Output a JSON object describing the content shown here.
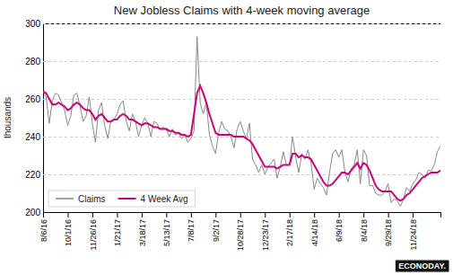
{
  "chart_data": {
    "type": "line",
    "title": "New Jobless  Claims with 4-week moving average",
    "y_label": "thousands",
    "annotations": [
      "ECONODAY."
    ],
    "categories": [
      "8/6/16",
      null,
      null,
      null,
      null,
      null,
      null,
      null,
      "10/1/16",
      null,
      null,
      null,
      null,
      null,
      null,
      null,
      "11/26/16",
      null,
      null,
      null,
      null,
      null,
      null,
      null,
      "1/21/17",
      null,
      null,
      null,
      null,
      null,
      null,
      null,
      "3/18/17",
      null,
      null,
      null,
      null,
      null,
      null,
      null,
      "5/13/17",
      null,
      null,
      null,
      null,
      null,
      null,
      null,
      "7/8/17",
      null,
      null,
      null,
      null,
      null,
      null,
      null,
      "9/2/17",
      null,
      null,
      null,
      null,
      null,
      null,
      null,
      "10/28/17",
      null,
      null,
      null,
      null,
      null,
      null,
      null,
      "12/23/17",
      null,
      null,
      null,
      null,
      null,
      null,
      null,
      "2/17/18",
      null,
      null,
      null,
      null,
      null,
      null,
      null,
      "4/14/18",
      null,
      null,
      null,
      null,
      null,
      null,
      null,
      "6/9/18",
      null,
      null,
      null,
      null,
      null,
      null,
      null,
      "8/4/18",
      null,
      null,
      null,
      null,
      null,
      null,
      null,
      "9/29/18",
      null,
      null,
      null,
      null,
      null,
      null,
      null,
      "11/24/18",
      null,
      null,
      null,
      null,
      null,
      null,
      null,
      null,
      null
    ],
    "series": [
      {
        "name": "Claims",
        "color": "#888888",
        "values": [
          264,
          261,
          247,
          259,
          263,
          262,
          258,
          254,
          246,
          251,
          262,
          263,
          256,
          248,
          251,
          261,
          247,
          237,
          254,
          258,
          246,
          239,
          248,
          249,
          252,
          257,
          259,
          248,
          243,
          252,
          248,
          240,
          246,
          250,
          247,
          240,
          248,
          247,
          244,
          245,
          244,
          240,
          244,
          241,
          242,
          239,
          241,
          237,
          239,
          243,
          293,
          258,
          252,
          258,
          241,
          235,
          231,
          242,
          248,
          244,
          243,
          240,
          234,
          244,
          248,
          243,
          239,
          247,
          228,
          225,
          221,
          225,
          220,
          224,
          226,
          228,
          218,
          224,
          232,
          225,
          225,
          240,
          229,
          221,
          231,
          228,
          233,
          226,
          212,
          218,
          215,
          213,
          209,
          221,
          231,
          233,
          229,
          233,
          221,
          216,
          223,
          225,
          233,
          215,
          233,
          230,
          214,
          214,
          210,
          209,
          209,
          211,
          215,
          205,
          207,
          206,
          203,
          207,
          213,
          211,
          215,
          217,
          221,
          220,
          218,
          222,
          222,
          225,
          232,
          235
        ]
      },
      {
        "name": "4 Week Avg",
        "color": "#cc0077",
        "values": [
          264,
          263,
          260,
          257,
          257,
          258,
          257,
          256,
          254,
          255,
          257,
          258,
          257,
          255,
          254,
          254,
          252,
          249,
          251,
          252,
          250,
          248,
          248,
          249,
          249,
          251,
          252,
          251,
          249,
          249,
          248,
          247,
          246,
          247,
          247,
          246,
          245,
          245,
          244,
          244,
          244,
          243,
          243,
          242,
          242,
          241,
          241,
          240,
          241,
          252,
          263,
          267,
          263,
          258,
          252,
          247,
          242,
          241,
          241,
          241,
          241,
          241,
          240,
          240,
          240,
          240,
          239,
          238,
          236,
          233,
          230,
          227,
          224,
          224,
          224,
          224,
          223,
          224,
          225,
          225,
          225,
          231,
          231,
          229,
          230,
          229,
          229,
          228,
          225,
          222,
          219,
          216,
          214,
          214,
          215,
          217,
          219,
          221,
          221,
          220,
          222,
          224,
          226,
          223,
          226,
          225,
          222,
          218,
          214,
          212,
          211,
          211,
          211,
          211,
          209,
          207,
          206,
          207,
          209,
          210,
          212,
          214,
          216,
          218,
          219,
          220,
          221,
          221,
          221,
          222
        ]
      }
    ],
    "ylim": [
      200,
      300
    ],
    "yticks": [
      200,
      220,
      240,
      260,
      280,
      300
    ],
    "grid": true,
    "legend": "lower left"
  }
}
